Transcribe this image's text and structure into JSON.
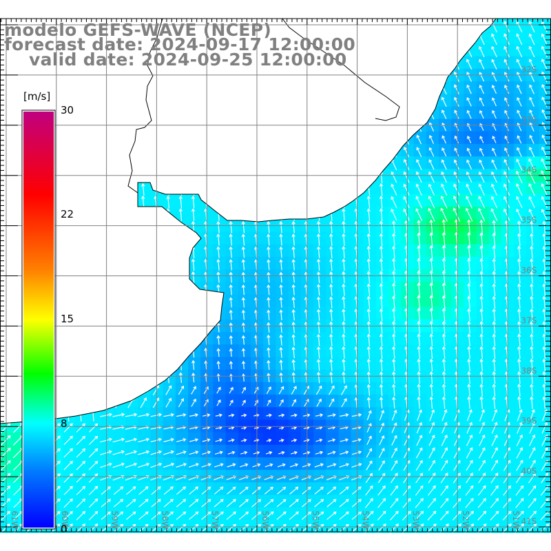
{
  "title": {
    "model": "modelo GEFS-WAVE (NCEP)",
    "forecast": "forecast date: 2024-09-17 12:00:00",
    "valid": "    valid date: 2024-09-25 12:00:00"
  },
  "colorbar": {
    "unit": "[m/s]",
    "ticks": [
      {
        "value": 30,
        "label": "30"
      },
      {
        "value": 22,
        "label": "22"
      },
      {
        "value": 15,
        "label": "15"
      },
      {
        "value": 8,
        "label": "8"
      },
      {
        "value": 0,
        "label": "0"
      }
    ],
    "colors": [
      "#0000ff",
      "#0080ff",
      "#00ffff",
      "#00ff00",
      "#ffff00",
      "#ff8000",
      "#ff0000",
      "#c0007f"
    ]
  },
  "map": {
    "lat_labels": [
      "32S",
      "33S",
      "34S",
      "35S",
      "36S",
      "37S",
      "38S",
      "39S",
      "40S",
      "41S"
    ],
    "lon_labels": [
      "61W",
      "60W",
      "59W",
      "58W",
      "57W",
      "56W",
      "55W",
      "54W",
      "53W",
      "52W",
      "51W"
    ],
    "grid_color": "#808080",
    "label_color": "#808080",
    "land_color": "#ffffff",
    "arrow_color": "#ffffff"
  }
}
